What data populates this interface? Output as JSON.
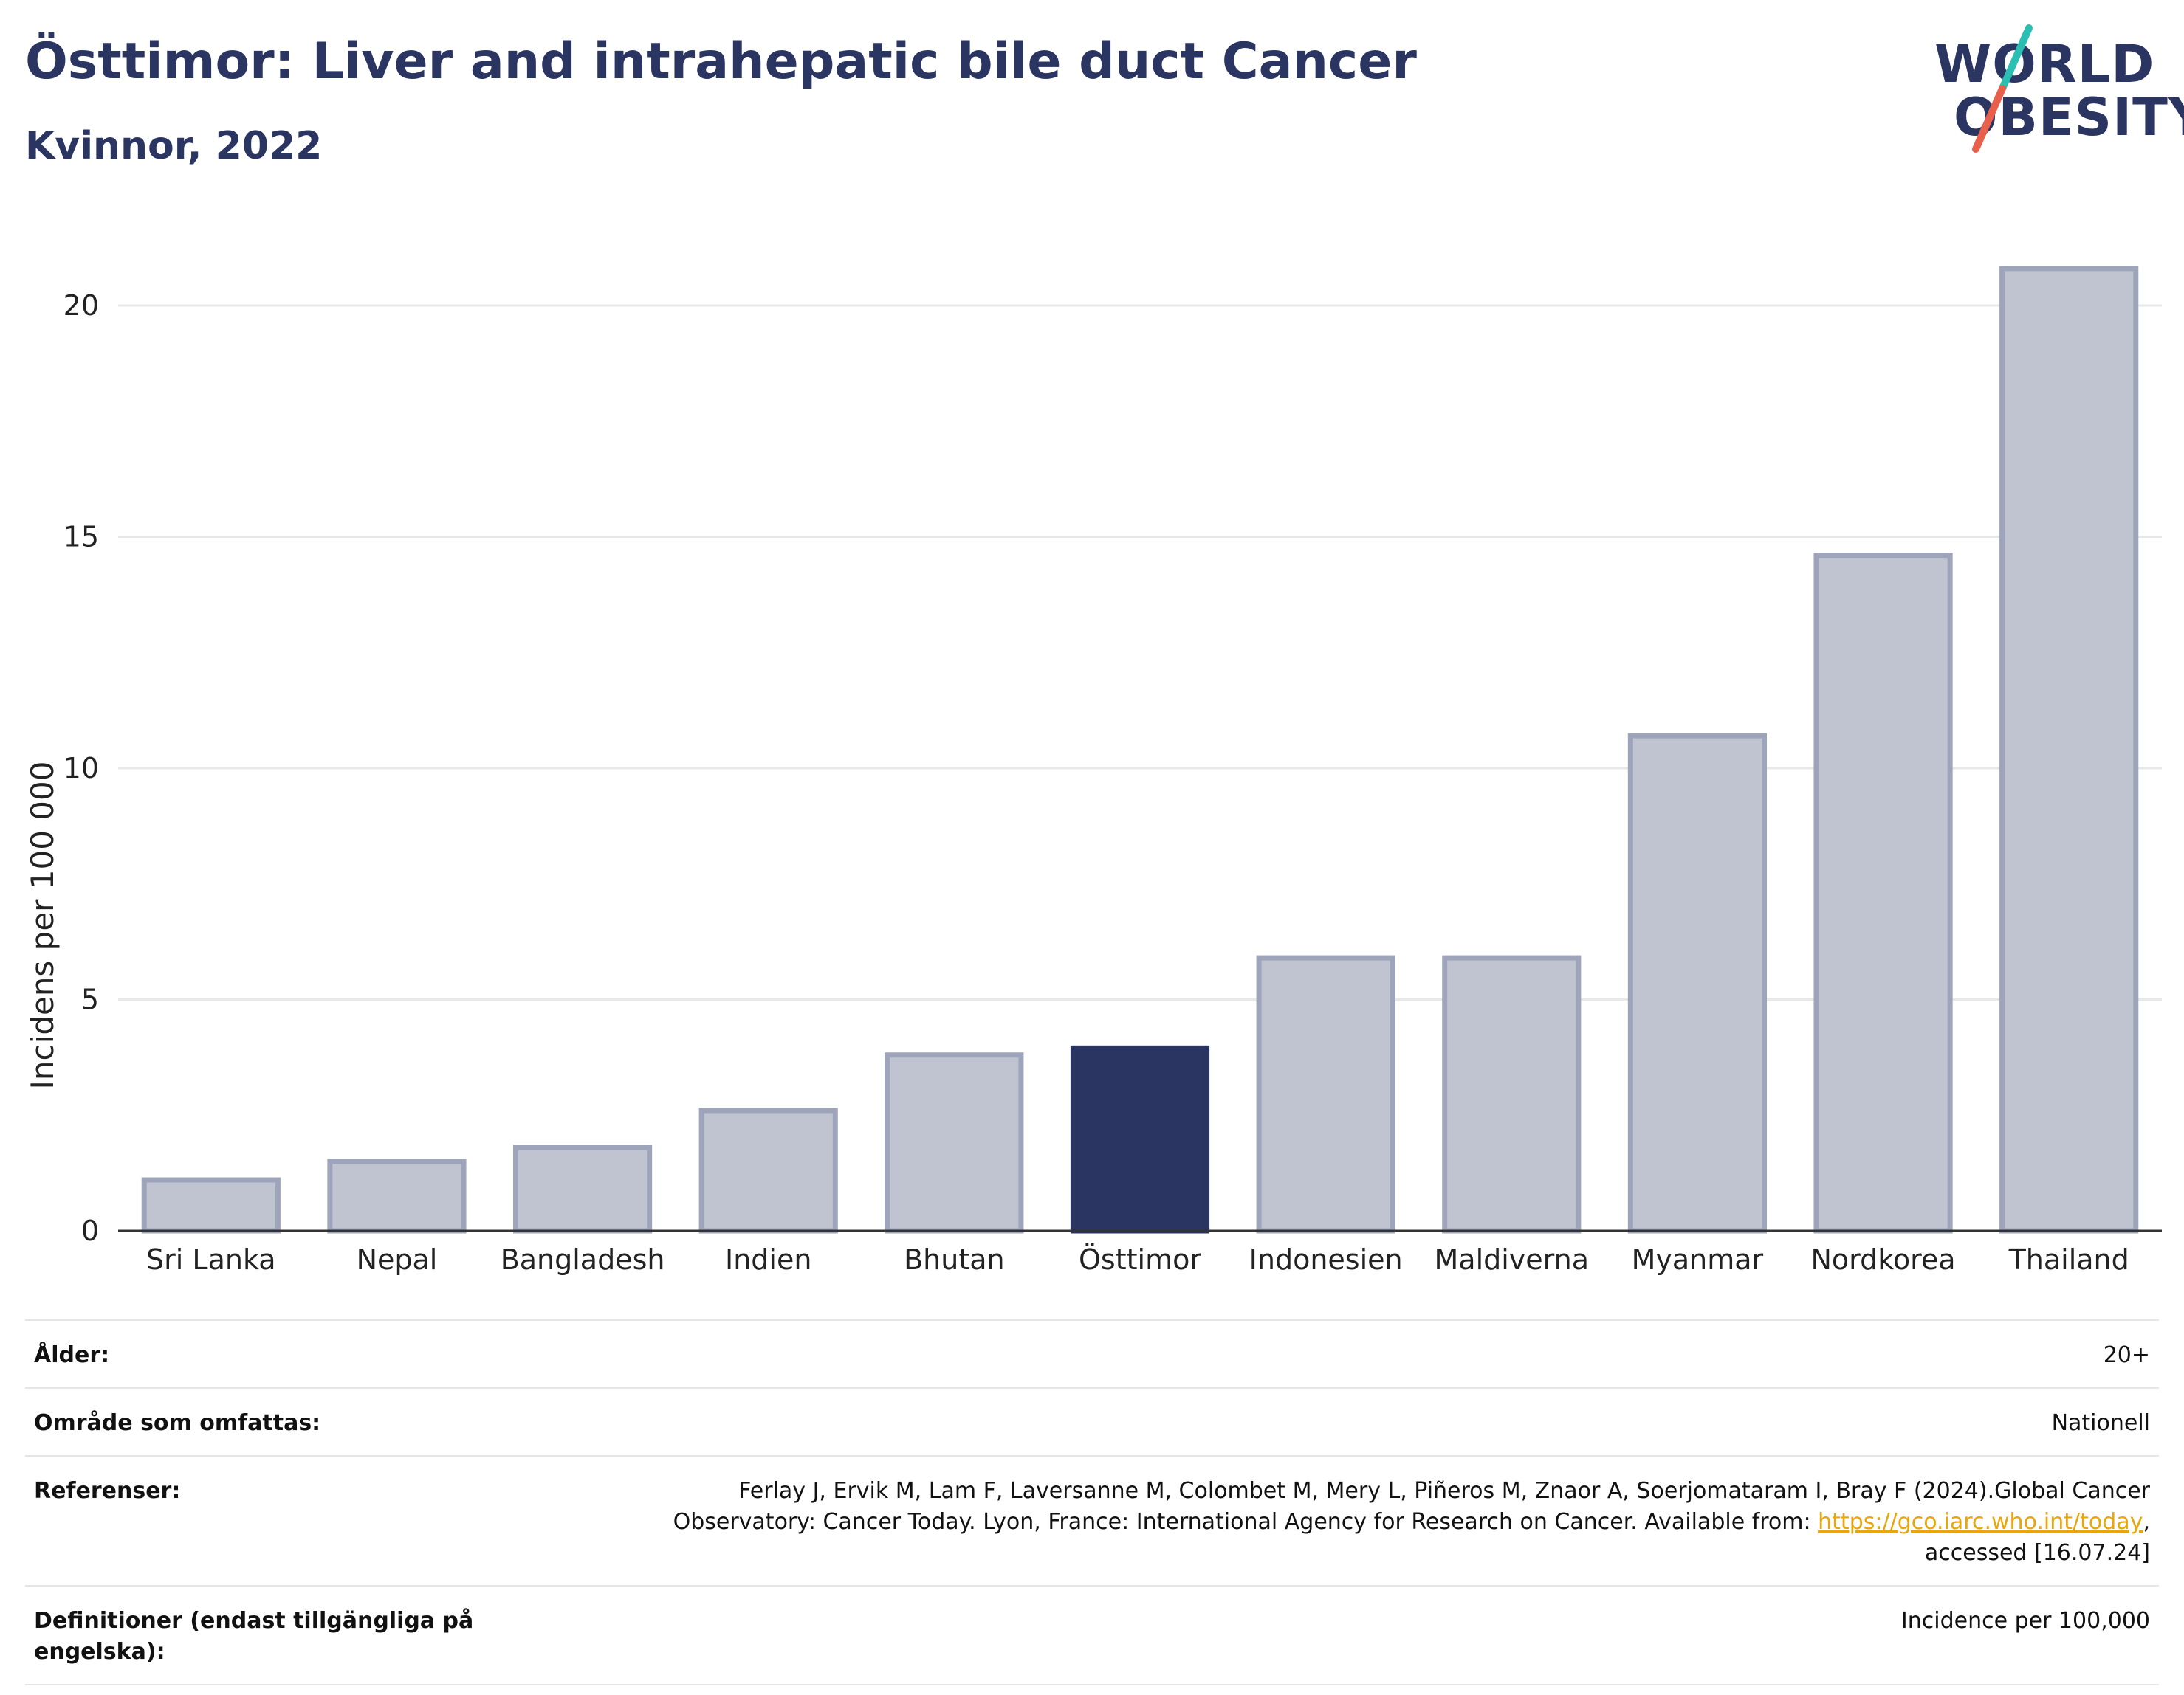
{
  "header": {
    "title": "Östtimor: Liver and intrahepatic bile duct Cancer",
    "subtitle": "Kvinnor, 2022"
  },
  "logo": {
    "line1": "WORLD",
    "line2": "OBESITY",
    "colors": {
      "text": "#2b3561",
      "slash_top": "#2bbfb3",
      "slash_bottom": "#e8604c"
    }
  },
  "colors": {
    "bar": "#c0c4d1",
    "bar_stroke": "#9ea4ba",
    "highlight": "#2b3561",
    "grid": "#e8e8e8",
    "axis": "#333333"
  },
  "chart_data": {
    "type": "bar",
    "categories": [
      "Sri Lanka",
      "Nepal",
      "Bangladesh",
      "Indien",
      "Bhutan",
      "Östtimor",
      "Indonesien",
      "Maldiverna",
      "Myanmar",
      "Nordkorea",
      "Thailand"
    ],
    "values": [
      1.1,
      1.5,
      1.8,
      2.6,
      3.8,
      3.95,
      5.9,
      5.9,
      10.7,
      14.6,
      20.8
    ],
    "highlight": "Östtimor",
    "title": "Östtimor: Liver and intrahepatic bile duct Cancer",
    "ylabel": "Incidens per 100 000",
    "xlabel": "",
    "ylim": [
      0,
      21.5
    ],
    "yticks": [
      0,
      5,
      10,
      15,
      20
    ],
    "grid": true,
    "legend": "none"
  },
  "info": {
    "rows": [
      {
        "label": "Ålder:",
        "value": "20+"
      },
      {
        "label": "Område som omfattas:",
        "value": "Nationell"
      },
      {
        "label": "Referenser:",
        "value_line1": "Ferlay J, Ervik M, Lam F, Laversanne M, Colombet M, Mery L, Piñeros M, Znaor A, Soerjomataram I, Bray F (2024).Global Cancer",
        "value_line2_pre": "Observatory: Cancer Today. Lyon, France: International Agency for Research on Cancer. Available from: ",
        "value_link": "https://gco.iarc.who.int/today",
        "value_line2_post": ",",
        "value_line3": "accessed [16.07.24]"
      },
      {
        "label_line1": "Definitioner (endast tillgängliga på",
        "label_line2": "engelska):",
        "value": "Incidence per 100,000"
      }
    ]
  }
}
